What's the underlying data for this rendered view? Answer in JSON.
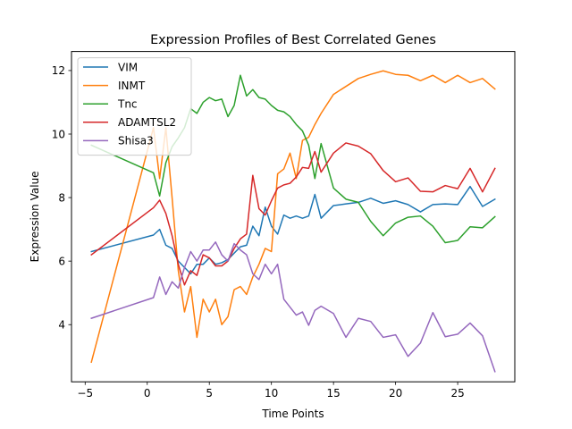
{
  "chart_data": {
    "type": "line",
    "title": "Expression Profiles of Best Correlated Genes",
    "xlabel": "Time Points",
    "ylabel": "Expression Value",
    "xlim": [
      -6.1,
      29.6
    ],
    "ylim": [
      2.2,
      12.6
    ],
    "xticks": [
      -5,
      0,
      5,
      10,
      15,
      20,
      25
    ],
    "yticks": [
      4,
      6,
      8,
      10,
      12
    ],
    "grid": false,
    "legend_position": "top-left",
    "x": [
      -4.5,
      0.5,
      1,
      1.5,
      2,
      2.5,
      3,
      3.5,
      4,
      4.5,
      5,
      5.5,
      6,
      6.5,
      7,
      7.5,
      8,
      8.5,
      9,
      9.5,
      10,
      10.5,
      11,
      11.5,
      12,
      12.5,
      13,
      13.5,
      14,
      15,
      16,
      17,
      18,
      19,
      20,
      21,
      22,
      23,
      24,
      25,
      26,
      27,
      28
    ],
    "series": [
      {
        "name": "VIM",
        "color": "#1f77b4",
        "values": [
          6.3,
          6.82,
          7.0,
          6.5,
          6.4,
          6.0,
          5.8,
          5.6,
          5.9,
          5.9,
          6.1,
          5.9,
          5.95,
          6.05,
          6.25,
          6.45,
          6.5,
          7.1,
          6.8,
          7.7,
          7.1,
          6.85,
          7.45,
          7.35,
          7.42,
          7.35,
          7.42,
          8.1,
          7.35,
          7.75,
          7.8,
          7.85,
          7.98,
          7.82,
          7.9,
          7.78,
          7.55,
          7.78,
          7.8,
          7.78,
          8.35,
          7.72,
          7.95
        ]
      },
      {
        "name": "INMT",
        "color": "#ff7f0e",
        "values": [
          2.82,
          10.2,
          8.6,
          10.2,
          8.0,
          5.7,
          4.4,
          5.2,
          3.6,
          4.8,
          4.4,
          4.8,
          4.0,
          4.25,
          5.1,
          5.2,
          4.95,
          5.5,
          5.9,
          6.4,
          6.3,
          8.75,
          8.9,
          9.4,
          8.6,
          9.8,
          9.9,
          10.3,
          10.65,
          11.25,
          11.5,
          11.75,
          11.88,
          11.99,
          11.88,
          11.85,
          11.68,
          11.85,
          11.62,
          11.85,
          11.62,
          11.75,
          11.42
        ]
      },
      {
        "name": "Tnc",
        "color": "#2ca02c",
        "values": [
          9.65,
          8.78,
          8.05,
          9.1,
          9.6,
          9.88,
          10.2,
          10.8,
          10.65,
          11.0,
          11.15,
          11.05,
          11.1,
          10.55,
          10.9,
          11.85,
          11.2,
          11.4,
          11.15,
          11.1,
          10.9,
          10.75,
          10.7,
          10.55,
          10.3,
          10.1,
          9.65,
          8.6,
          9.7,
          8.3,
          7.95,
          7.85,
          7.25,
          6.8,
          7.2,
          7.38,
          7.42,
          7.1,
          6.58,
          6.65,
          7.08,
          7.05,
          7.4
        ]
      },
      {
        "name": "ADAMTSL2",
        "color": "#d62728",
        "values": [
          6.2,
          7.68,
          7.92,
          7.5,
          6.8,
          5.9,
          5.25,
          5.7,
          5.55,
          6.2,
          6.1,
          5.85,
          5.85,
          6.0,
          6.4,
          6.7,
          6.85,
          8.7,
          7.65,
          7.45,
          7.9,
          8.3,
          8.4,
          8.45,
          8.65,
          8.95,
          8.92,
          9.45,
          8.8,
          9.4,
          9.72,
          9.62,
          9.38,
          8.85,
          8.5,
          8.62,
          8.2,
          8.18,
          8.38,
          8.28,
          8.92,
          8.18,
          8.92
        ]
      },
      {
        "name": "Shisa3",
        "color": "#9467bd",
        "values": [
          4.2,
          4.85,
          5.5,
          4.95,
          5.35,
          5.15,
          5.8,
          6.3,
          6.0,
          6.35,
          6.35,
          6.6,
          6.2,
          6.0,
          6.55,
          6.35,
          6.2,
          5.6,
          5.42,
          5.9,
          5.6,
          5.9,
          4.8,
          4.55,
          4.3,
          4.4,
          3.98,
          4.45,
          4.58,
          4.35,
          3.6,
          4.2,
          4.1,
          3.6,
          3.68,
          3.0,
          3.42,
          4.38,
          3.62,
          3.7,
          4.05,
          3.65,
          2.52
        ]
      }
    ]
  }
}
